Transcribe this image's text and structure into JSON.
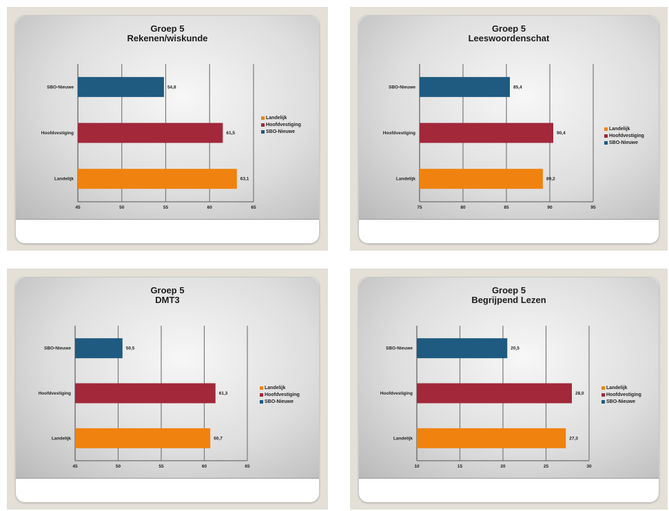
{
  "colors": {
    "Landelijk": "#f0820f",
    "Hoofdvestiging": "#a2283a",
    "SBO-Nieuwe": "#1f5a80"
  },
  "chart_data": [
    {
      "type": "bar",
      "title": "Groep 5",
      "subtitle": "Rekenen/wiskunde",
      "categories": [
        "Landelijk",
        "Hoofdvestiging",
        "SBO-Nieuwe"
      ],
      "category_labels": [
        "Landelijk",
        "Hoofdvestiging",
        "SBO-Nieuwe"
      ],
      "values": [
        63.1,
        61.5,
        54.8
      ],
      "value_labels": [
        "63,1",
        "61,5",
        "54,8"
      ],
      "xlim": [
        45,
        65
      ],
      "xticks": [
        45,
        50,
        55,
        60,
        65
      ],
      "legend": [
        "Landelijk",
        "Hoofdvestiging",
        "SBO-Nieuwe"
      ],
      "legend_position": "right",
      "grid": true
    },
    {
      "type": "bar",
      "title": "Groep 5",
      "subtitle": "Leeswoordenschat",
      "categories": [
        "Landelijk",
        "Hoofdvestiging",
        "SBO-Nieuwe"
      ],
      "category_labels": [
        "Landelijk",
        "Hoofdvestiging",
        "SBO-Nieuwe"
      ],
      "values": [
        89.2,
        90.4,
        85.4
      ],
      "value_labels": [
        "89,2",
        "90,4",
        "85,4"
      ],
      "xlim": [
        75,
        95
      ],
      "xticks": [
        75,
        80,
        85,
        90,
        95
      ],
      "legend": [
        "Landelijk",
        "Hoofdvestiging",
        "SBO-Nieuwe"
      ],
      "legend_position": "right",
      "grid": true
    },
    {
      "type": "bar",
      "title": "Groep 5",
      "subtitle": "DMT3",
      "categories": [
        "Landelijk",
        "Hoofdvestiging",
        "SBO-Nieuwe"
      ],
      "category_labels": [
        "Landelijk",
        "Hoofdvestiging",
        "SBO-Nieuwe"
      ],
      "values": [
        60.7,
        61.3,
        50.5
      ],
      "value_labels": [
        "60,7",
        "61,3",
        "50,5"
      ],
      "xlim": [
        45,
        65
      ],
      "xticks": [
        45,
        50,
        55,
        60,
        65
      ],
      "legend": [
        "Landelijk",
        "Hoofdvestiging",
        "SBO-Nieuwe"
      ],
      "legend_position": "right",
      "grid": true
    },
    {
      "type": "bar",
      "title": "Groep 5",
      "subtitle": "Begrijpend Lezen",
      "categories": [
        "Landelijk",
        "Hoofdvestiging",
        "SBO-Nieuwe"
      ],
      "category_labels": [
        "Landelijk",
        "Hoofdvestiging",
        "SBO-Nieuwe"
      ],
      "values": [
        27.3,
        28,
        20.5
      ],
      "value_labels": [
        "27,3",
        "28,0",
        "20,5"
      ],
      "xlim": [
        10,
        30
      ],
      "xticks": [
        10,
        15,
        20,
        25,
        30
      ],
      "legend": [
        "Landelijk",
        "Hoofdvestiging",
        "SBO-Nieuwe"
      ],
      "legend_position": "right",
      "grid": true
    }
  ]
}
